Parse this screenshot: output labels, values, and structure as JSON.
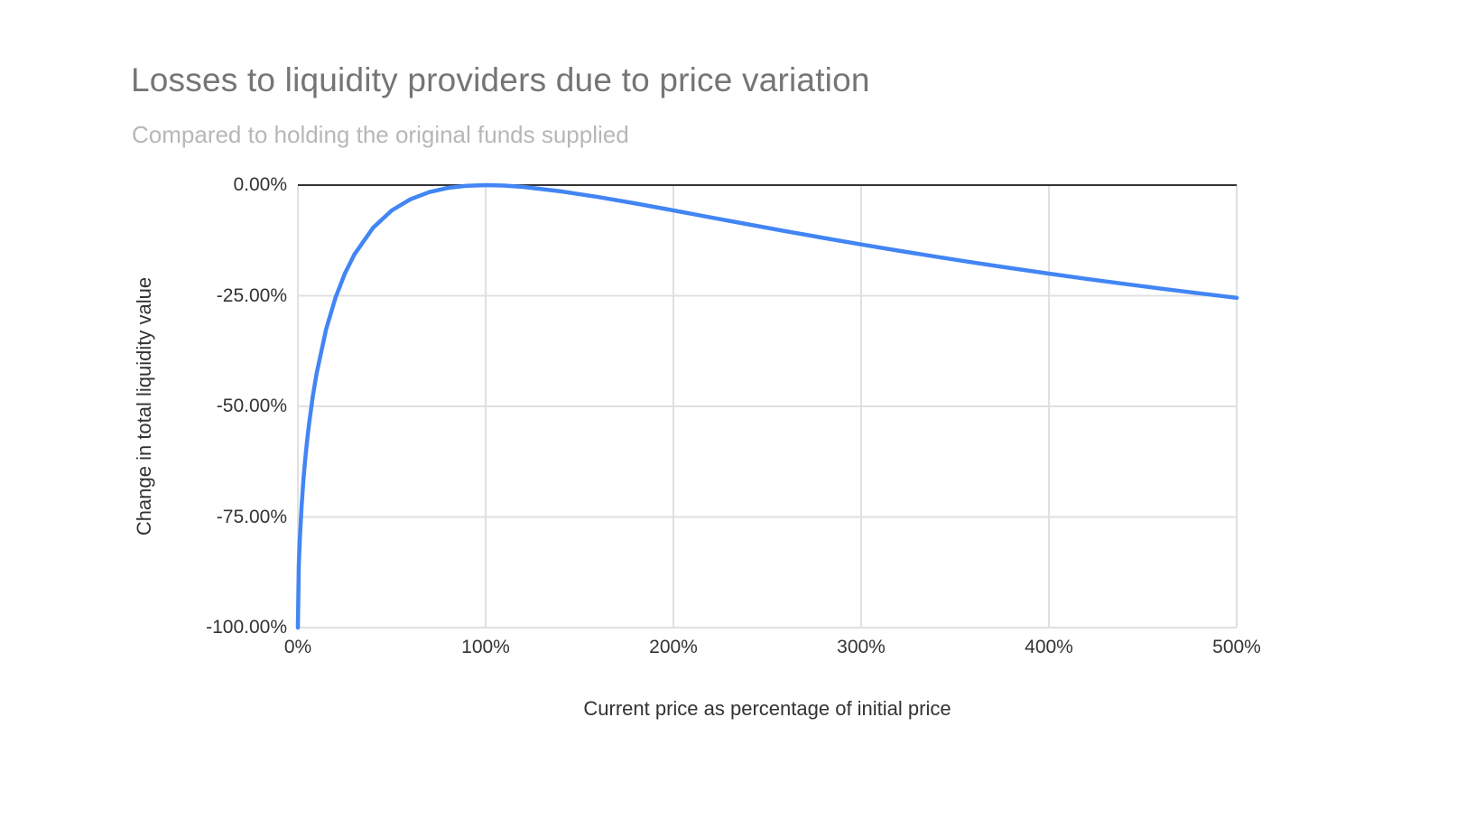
{
  "page": {
    "background": "#ffffff"
  },
  "chart_data": {
    "type": "line",
    "title": "Losses to liquidity providers due to price variation",
    "subtitle": "Compared to holding the original funds supplied",
    "xlabel": "Current price as percentage of initial price",
    "ylabel": "Change in total liquidity value",
    "xlim": [
      0,
      500
    ],
    "ylim": [
      -100,
      0
    ],
    "grid": true,
    "legend": "none",
    "x_ticks": [
      {
        "value": 0,
        "label": "0%"
      },
      {
        "value": 100,
        "label": "100%"
      },
      {
        "value": 200,
        "label": "200%"
      },
      {
        "value": 300,
        "label": "300%"
      },
      {
        "value": 400,
        "label": "400%"
      },
      {
        "value": 500,
        "label": "500%"
      }
    ],
    "y_ticks": [
      {
        "value": 0,
        "label": "0.00%"
      },
      {
        "value": -25,
        "label": "-25.00%"
      },
      {
        "value": -50,
        "label": "-50.00%"
      },
      {
        "value": -75,
        "label": "-75.00%"
      },
      {
        "value": -100,
        "label": "-100.00%"
      }
    ],
    "series": [
      {
        "name": "Change in total liquidity value",
        "color": "#4285f4",
        "points": [
          [
            0,
            -100
          ],
          [
            0.5,
            -85.93
          ],
          [
            1,
            -80.2
          ],
          [
            2,
            -72.27
          ],
          [
            3,
            -66.37
          ],
          [
            4,
            -61.54
          ],
          [
            5,
            -57.41
          ],
          [
            6,
            -53.78
          ],
          [
            8,
            -47.62
          ],
          [
            10,
            -42.5
          ],
          [
            15,
            -32.64
          ],
          [
            20,
            -25.46
          ],
          [
            25,
            -20.0
          ],
          [
            30,
            -15.73
          ],
          [
            40,
            -9.65
          ],
          [
            50,
            -5.72
          ],
          [
            60,
            -3.18
          ],
          [
            70,
            -1.57
          ],
          [
            80,
            -0.62
          ],
          [
            90,
            -0.14
          ],
          [
            100,
            0
          ],
          [
            110,
            -0.11
          ],
          [
            120,
            -0.41
          ],
          [
            140,
            -1.4
          ],
          [
            160,
            -2.7
          ],
          [
            180,
            -4.17
          ],
          [
            200,
            -5.72
          ],
          [
            220,
            -7.3
          ],
          [
            240,
            -8.87
          ],
          [
            260,
            -10.42
          ],
          [
            280,
            -11.93
          ],
          [
            300,
            -13.4
          ],
          [
            320,
            -14.82
          ],
          [
            340,
            -16.19
          ],
          [
            360,
            -17.51
          ],
          [
            380,
            -18.78
          ],
          [
            400,
            -20.0
          ],
          [
            420,
            -21.18
          ],
          [
            440,
            -22.31
          ],
          [
            460,
            -23.4
          ],
          [
            480,
            -24.45
          ],
          [
            500,
            -25.46
          ]
        ]
      }
    ],
    "colors": {
      "line": "#4285f4",
      "grid": "#e0e0e0",
      "axis": "#333333",
      "title": "#757575",
      "subtitle": "#b7b7b7",
      "tick": "#333333"
    }
  }
}
